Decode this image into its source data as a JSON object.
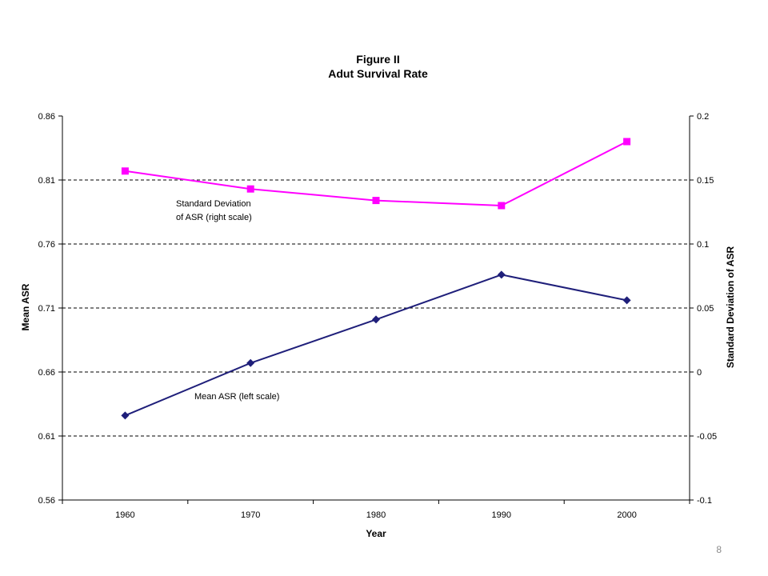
{
  "slide": {
    "page_number": "8"
  },
  "chart_data": {
    "type": "line",
    "title": "Figure II",
    "subtitle": "Adut Survival Rate",
    "xlabel": "Year",
    "ylabel_left": "Mean ASR",
    "ylabel_right": "Standard Deviation of ASR",
    "categories": [
      "1960",
      "1970",
      "1980",
      "1990",
      "2000"
    ],
    "ylim_left": [
      0.56,
      0.86
    ],
    "yticks_left": [
      "0.56",
      "0.61",
      "0.66",
      "0.71",
      "0.76",
      "0.81",
      "0.86"
    ],
    "ylim_right": [
      -0.1,
      0.2
    ],
    "yticks_right": [
      "-0.1",
      "-0.05",
      "0",
      "0.05",
      "0.1",
      "0.15",
      "0.2"
    ],
    "grid": "dashed horizontal",
    "series": [
      {
        "axis": "left",
        "color": "#1f1f7a",
        "marker": "diamond",
        "values": [
          0.626,
          0.667,
          0.701,
          0.736,
          0.716
        ]
      },
      {
        "axis": "right",
        "color": "#ff00ff",
        "marker": "square",
        "values": [
          0.157,
          0.143,
          0.134,
          0.13,
          0.18
        ]
      }
    ],
    "annotations": [
      {
        "lines": [
          "Standard Deviation",
          "of ASR (right scale)"
        ],
        "near": "upper series, between 1960 and 1980"
      },
      {
        "lines": [
          "Mean ASR (left scale)"
        ],
        "near": "lower series, between 1960 and 1980"
      }
    ]
  }
}
